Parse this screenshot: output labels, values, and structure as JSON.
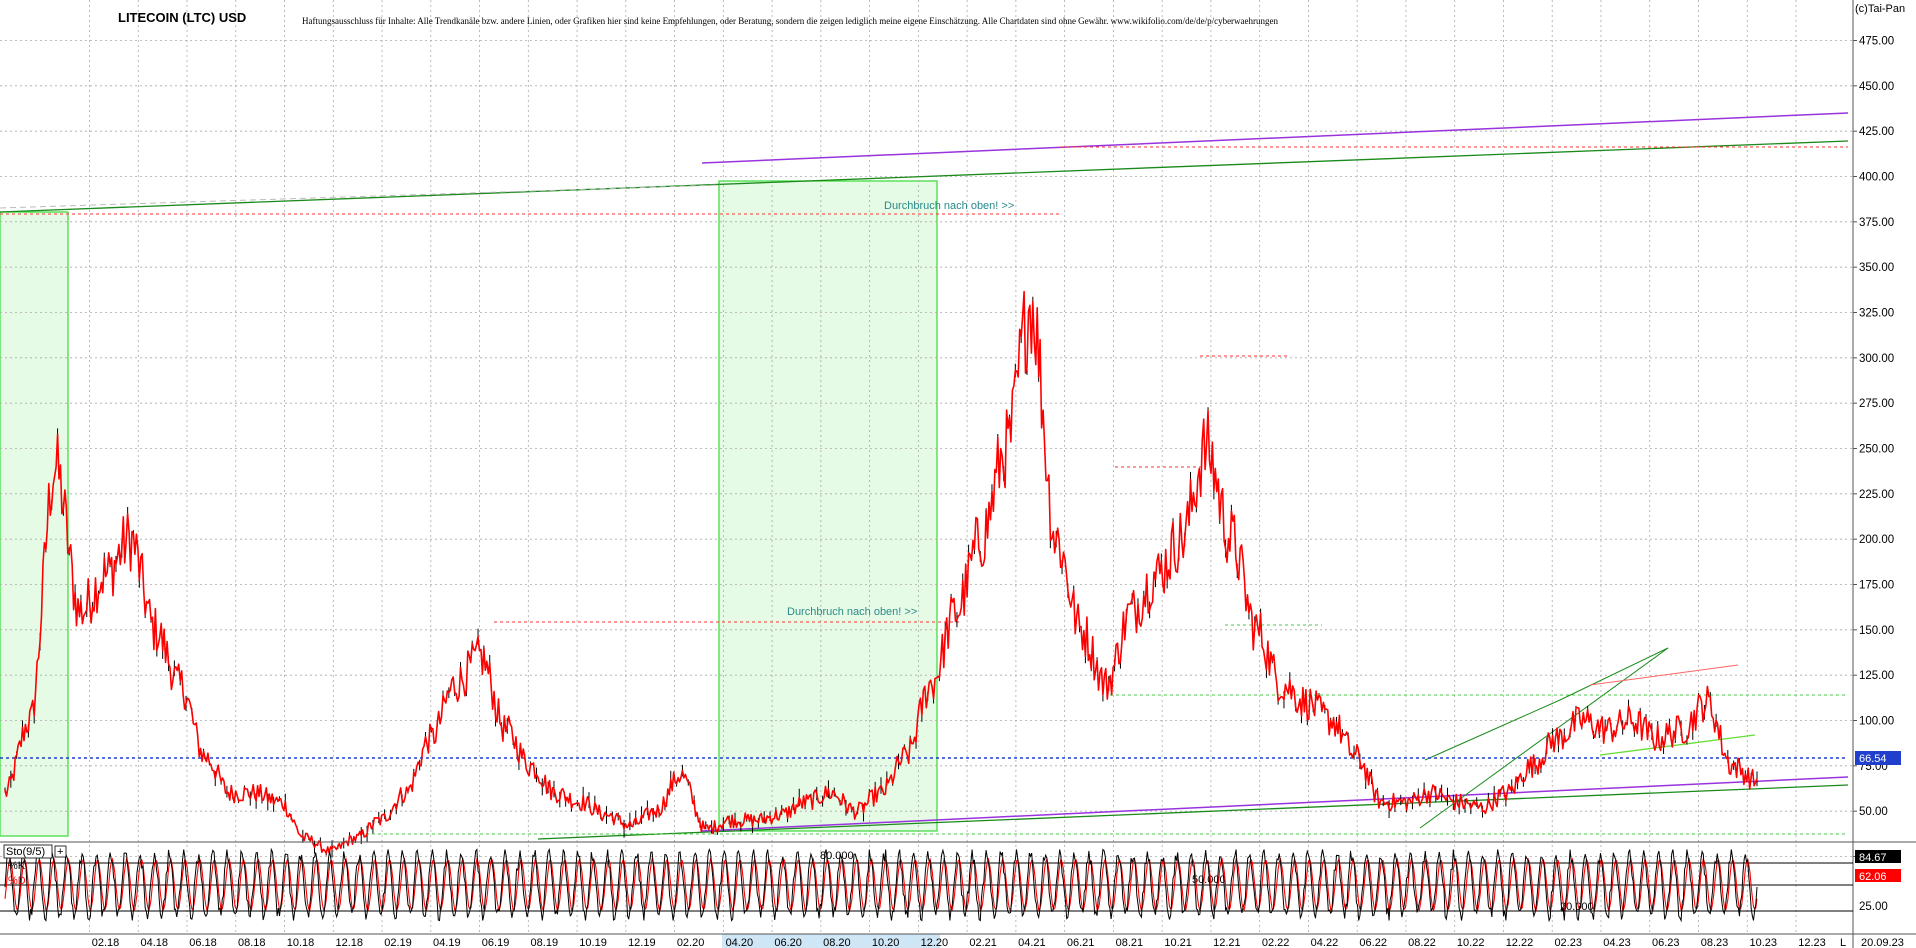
{
  "header": {
    "title": "LITECOIN (LTC) USD",
    "disclaimer": "Haftungsausschluss für Inhalte: Alle Trendkanäle bzw. andere Linien, oder Grafiken hier sind keine Empfehlungen, oder Beratung, sondern die zeigen lediglich meine eigene Einschätzung. Alle Chartdaten sind ohne Gewähr. www.wikifolio.com/de/de/p/cyberwaehrungen",
    "copyright": "(c)Tai-Pan"
  },
  "chart_data": [
    {
      "type": "line",
      "series": [
        {
          "x": [
            "11.2017",
            "12.2017",
            "01.2018",
            "02.2018",
            "03.2018",
            "04.2018",
            "05.2018",
            "06.2018",
            "07.2018",
            "08.2018",
            "09.2018",
            "10.2018",
            "11.2018",
            "12.2018",
            "01.2019",
            "02.2019",
            "03.2019",
            "04.2019",
            "05.2019",
            "06.2019",
            "07.2019",
            "08.2019",
            "09.2019",
            "10.2019",
            "11.2019",
            "12.2019",
            "01.2020",
            "02.2020",
            "03.2020",
            "04.2020",
            "05.2020",
            "06.2020",
            "07.2020",
            "08.2020",
            "09.2020",
            "10.2020",
            "11.2020",
            "12.2020",
            "01.2021",
            "02.2021",
            "03.2021",
            "04.2021",
            "05.2021",
            "06.2021",
            "07.2021",
            "08.2021",
            "09.2021",
            "10.2021",
            "11.2021",
            "12.2021",
            "01.2022",
            "02.2022",
            "03.2022",
            "04.2022",
            "05.2022",
            "06.2022",
            "07.2022",
            "08.2022",
            "09.2022",
            "10.2022",
            "11.2022",
            "12.2022",
            "01.2023",
            "02.2023",
            "03.2023",
            "04.2023",
            "05.2023",
            "06.2023",
            "07.2023",
            "08.2023",
            "09.2023"
          ],
          "values": [
            60,
            100,
            240,
            160,
            180,
            200,
            150,
            120,
            80,
            60,
            60,
            55,
            35,
            28,
            35,
            45,
            60,
            90,
            120,
            135,
            95,
            75,
            60,
            55,
            48,
            42,
            50,
            70,
            40,
            45,
            45,
            48,
            55,
            60,
            50,
            60,
            80,
            120,
            160,
            200,
            250,
            330,
            200,
            150,
            120,
            160,
            180,
            200,
            250,
            200,
            150,
            120,
            110,
            100,
            80,
            55,
            55,
            60,
            55,
            52,
            60,
            75,
            90,
            100,
            95,
            100,
            90,
            95,
            110,
            75,
            66.54
          ]
        }
      ],
      "y_ticks": [
        "475.00",
        "450.00",
        "425.00",
        "400.00",
        "375.00",
        "350.00",
        "325.00",
        "300.00",
        "275.00",
        "250.00",
        "225.00",
        "200.00",
        "175.00",
        "150.00",
        "125.00",
        "100.00",
        "75.00",
        "50.00",
        "25.00"
      ],
      "ylim": [
        10,
        490
      ],
      "x_ticks": [
        "02.18",
        "04.18",
        "06.18",
        "08.18",
        "10.18",
        "12.18",
        "02.19",
        "04.19",
        "06.19",
        "08.19",
        "10.19",
        "12.19",
        "02.20",
        "04.20",
        "06.20",
        "08.20",
        "10.20",
        "12.20",
        "02.21",
        "04.21",
        "06.21",
        "08.21",
        "10.21",
        "12.21",
        "02.22",
        "04.22",
        "06.22",
        "08.22",
        "10.22",
        "12.22",
        "02.23",
        "04.23",
        "06.23",
        "08.23",
        "10.23",
        "12.23"
      ],
      "x_end_label": "20.09.23",
      "x_end_marker": "L",
      "current_price": "66.54",
      "annotations": [
        "Durchbruch nach oben! >>",
        "Durchbruch nach oben! >>"
      ],
      "colors": {
        "price": "#ff0000",
        "candle": "#000000",
        "support": "#1f3fcc",
        "channel": "#1a8a1a",
        "purple": "#9933dd",
        "range_box": "#66ee66",
        "resistance": "#ff4444"
      }
    },
    {
      "type": "line",
      "title": "Sto(9/5)",
      "series": [
        {
          "name": "%K",
          "values": [
            70,
            30,
            85,
            20,
            90,
            15,
            80,
            40,
            95,
            25
          ]
        },
        {
          "name": "%D",
          "values": [
            60,
            45,
            70,
            35,
            75,
            30,
            70,
            50,
            80,
            40
          ]
        }
      ],
      "levels": [
        "80.000",
        "50.000",
        "20.000"
      ],
      "y_ticks": [
        "25.00"
      ],
      "k_value": "84.67",
      "d_value": "62.06",
      "colors": {
        "k": "#000000",
        "d": "#ff0000",
        "k_badge": "#000000",
        "d_badge": "#ff0000"
      }
    }
  ]
}
